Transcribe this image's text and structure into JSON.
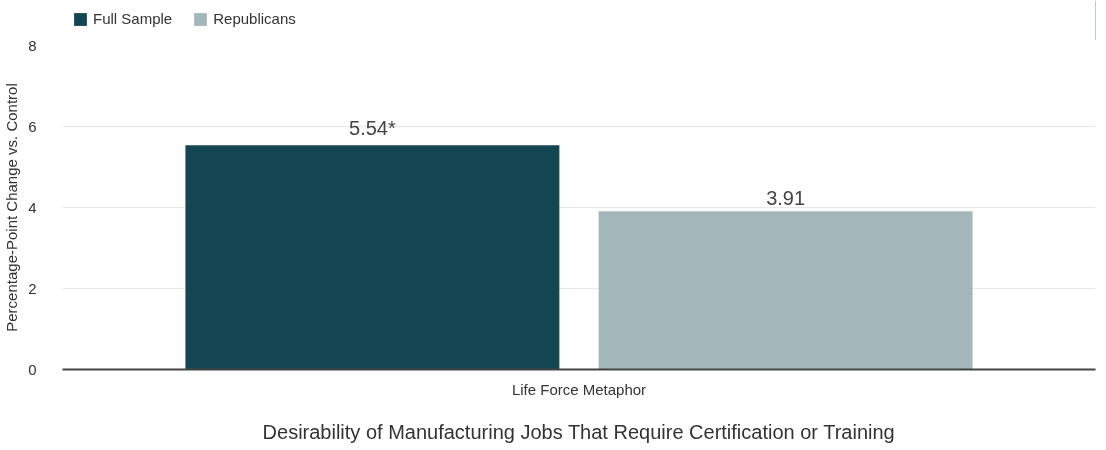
{
  "chart_data": {
    "type": "bar",
    "xlabel": "Desirability of Manufacturing Jobs That Require Certification or Training",
    "ylabel": "Percentage-Point Change vs. Control",
    "categories": [
      "Life Force Metaphor"
    ],
    "series": [
      {
        "name": "Full Sample",
        "color": "#134652",
        "values": [
          5.54
        ],
        "value_labels": [
          "5.54*"
        ]
      },
      {
        "name": "Republicans",
        "color": "#a3b7bb",
        "values": [
          3.91
        ],
        "value_labels": [
          "3.91"
        ]
      }
    ],
    "ylim": [
      0,
      8
    ],
    "yticks": [
      0,
      2,
      4,
      6,
      8
    ],
    "grid": "y",
    "legend": "top left"
  }
}
